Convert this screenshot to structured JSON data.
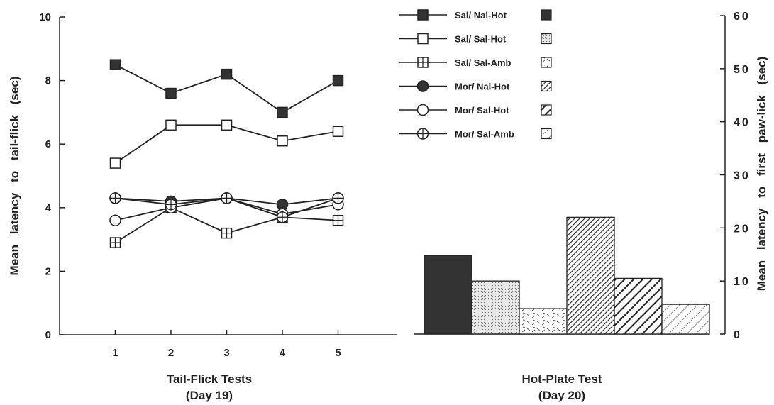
{
  "chart_data": [
    {
      "type": "line",
      "title": "",
      "xlabel": "Tail-Flick Tests",
      "xlabel2": "(Day 19)",
      "ylabel": "Mean latency to tail-flick (sec)",
      "x": [
        1,
        2,
        3,
        4,
        5
      ],
      "xticks": [
        "1",
        "2",
        "3",
        "4",
        "5"
      ],
      "yticks": [
        "0",
        "2",
        "4",
        "6",
        "8",
        "10"
      ],
      "ylim": [
        0,
        10
      ],
      "xlim": [
        0,
        6
      ],
      "grid": false,
      "series": [
        {
          "name": "Sal/ Nal-Hot",
          "marker": "filled-square",
          "values": [
            8.5,
            7.6,
            8.2,
            7.0,
            8.0
          ]
        },
        {
          "name": "Sal/ Sal-Hot",
          "marker": "open-square",
          "values": [
            5.4,
            6.6,
            6.6,
            6.1,
            6.4
          ]
        },
        {
          "name": "Sal/ Sal-Amb",
          "marker": "crossed-square",
          "values": [
            2.9,
            4.0,
            3.2,
            3.7,
            3.6
          ]
        },
        {
          "name": "Mor/ Nal-Hot",
          "marker": "filled-circle",
          "values": [
            4.3,
            4.2,
            4.3,
            4.1,
            4.3
          ]
        },
        {
          "name": "Mor/ Sal-Hot",
          "marker": "open-circle",
          "values": [
            3.6,
            4.0,
            4.3,
            3.8,
            4.1
          ]
        },
        {
          "name": "Mor/ Sal-Amb",
          "marker": "crossed-circle",
          "values": [
            4.3,
            4.1,
            4.3,
            3.7,
            4.3
          ]
        }
      ]
    },
    {
      "type": "bar",
      "title": "",
      "xlabel": "Hot-Plate Test",
      "xlabel2": "(Day 20)",
      "ylabel": "Mean latency to first paw-lick (sec)",
      "ylim": [
        0,
        60
      ],
      "yticks": [
        "0",
        "10",
        "20",
        "30",
        "40",
        "50",
        "60"
      ],
      "y_axis_side": "right",
      "categories": [
        "Sal/ Nal-Hot",
        "Sal/ Sal-Hot",
        "Sal/ Sal-Amb",
        "Mor/ Nal-Hot",
        "Mor/ Sal-Hot",
        "Mor/ Sal-Amb"
      ],
      "patterns": [
        "solid-dark",
        "light-stipple",
        "dashed-hatch",
        "dense-diagonal",
        "bold-diagonal",
        "light-diagonal"
      ],
      "values": [
        14.8,
        10.0,
        4.8,
        22.0,
        10.5,
        5.6
      ]
    }
  ],
  "legend": {
    "placement": "top-center",
    "items": [
      "Sal/ Nal-Hot",
      "Sal/ Sal-Hot",
      "Sal/ Sal-Amb",
      "Mor/ Nal-Hot",
      "Mor/ Sal-Hot",
      "Mor/ Sal-Amb"
    ]
  },
  "colors": {
    "ink": "#222222",
    "dark_fill": "#333333",
    "background": "#ffffff"
  }
}
